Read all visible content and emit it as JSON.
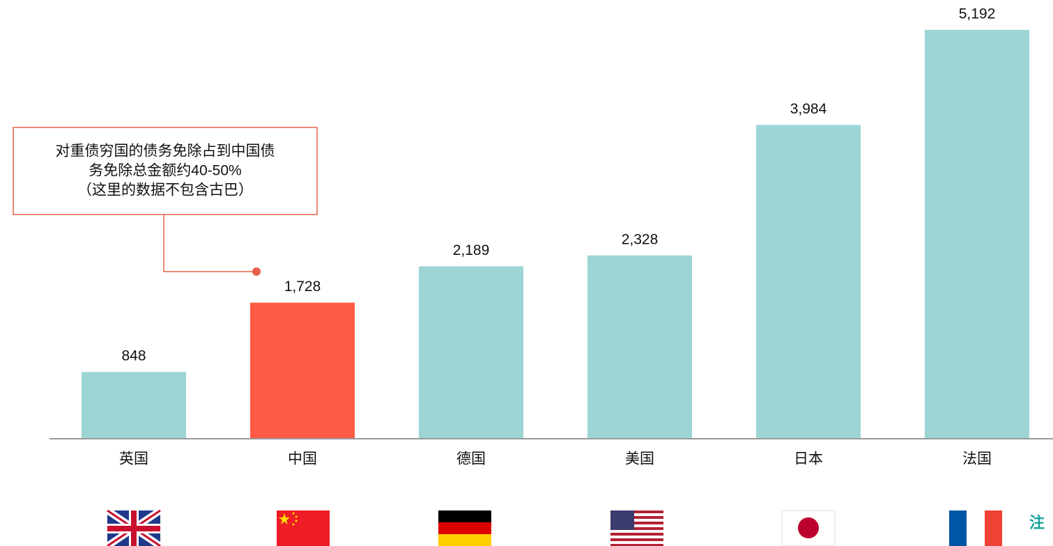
{
  "chart_data": {
    "type": "bar",
    "categories": [
      "英国",
      "中国",
      "德国",
      "美国",
      "日本",
      "法国"
    ],
    "values": [
      848,
      1728,
      2189,
      2328,
      3984,
      5192
    ],
    "value_labels": [
      "848",
      "1,728",
      "2,189",
      "2,328",
      "3,984",
      "5,192"
    ],
    "colors": [
      "#9dd5d5",
      "#ff5a45",
      "#9dd5d5",
      "#9dd5d5",
      "#9dd5d5",
      "#9dd5d5"
    ],
    "ylim": [
      0,
      5500
    ],
    "annotation": [
      "对重债穷国的债务免除占到中国债",
      "务免除总金额约40-50%",
      "（这里的数据不包含古巴）"
    ],
    "note": "注"
  }
}
